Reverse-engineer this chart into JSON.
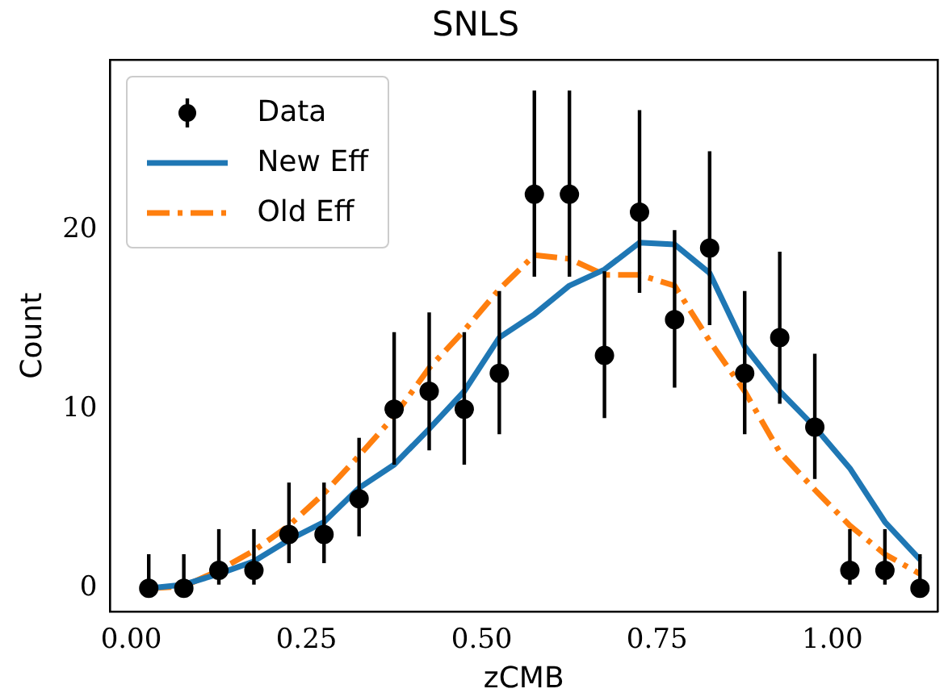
{
  "chart_data": {
    "type": "line",
    "title": "SNLS",
    "xlabel": "zCMB",
    "ylabel": "Count",
    "xlim": [
      -0.03,
      1.15
    ],
    "xticks": [
      {
        "value": 0,
        "label": "0.00"
      },
      {
        "value": 0.25,
        "label": "0.25"
      },
      {
        "value": 0.5,
        "label": "0.50"
      },
      {
        "value": 0.75,
        "label": "0.75"
      },
      {
        "value": 1,
        "label": "1.00"
      }
    ],
    "ylim": [
      -1.3,
      29.5
    ],
    "yticks": [
      0,
      10,
      20
    ],
    "x": [
      0.025,
      0.075,
      0.125,
      0.175,
      0.225,
      0.275,
      0.325,
      0.375,
      0.425,
      0.475,
      0.525,
      0.575,
      0.625,
      0.675,
      0.725,
      0.775,
      0.825,
      0.875,
      0.925,
      0.975,
      1.025,
      1.075,
      1.125
    ],
    "legend": "top left",
    "grid": false,
    "series": [
      {
        "name": "Data",
        "type": "scatter",
        "color": "#000000",
        "marker": "circle",
        "values": [
          0,
          0,
          1,
          1,
          3,
          3,
          5,
          10,
          11,
          10,
          12,
          22,
          22,
          13,
          21,
          15,
          19,
          12,
          14,
          9,
          1,
          1,
          0
        ],
        "errors": [
          [
            0,
            1.9
          ],
          [
            0,
            1.9
          ],
          [
            0.2,
            3.3
          ],
          [
            0.2,
            3.3
          ],
          [
            1.4,
            5.9
          ],
          [
            1.4,
            5.9
          ],
          [
            2.9,
            8.4
          ],
          [
            6.9,
            14.3
          ],
          [
            7.7,
            15.4
          ],
          [
            6.9,
            14.3
          ],
          [
            8.6,
            16.6
          ],
          [
            17.4,
            27.8
          ],
          [
            17.4,
            27.8
          ],
          [
            9.5,
            17.7
          ],
          [
            16.5,
            26.7
          ],
          [
            11.2,
            20
          ],
          [
            14.7,
            24.4
          ],
          [
            8.6,
            16.6
          ],
          [
            10.3,
            18.8
          ],
          [
            6.1,
            13.1
          ],
          [
            0.2,
            3.3
          ],
          [
            0.2,
            3.3
          ],
          [
            0,
            1.9
          ]
        ]
      },
      {
        "name": "New Eff",
        "color": "#1f77b4",
        "marker": "none",
        "line_style": "solid",
        "values": [
          0,
          0.2,
          0.8,
          1.5,
          2.7,
          3.7,
          5.6,
          6.9,
          8.9,
          11.0,
          14.0,
          15.3,
          16.9,
          17.8,
          19.3,
          19.2,
          17.6,
          13.5,
          11.0,
          9.0,
          6.7,
          3.7,
          1.6
        ]
      },
      {
        "name": "Old Eff",
        "color": "#ff7f0e",
        "marker": "none",
        "line_style": "dashed",
        "values": [
          0,
          0.1,
          1.0,
          2.1,
          3.5,
          5.3,
          7.4,
          9.6,
          12.3,
          14.4,
          16.7,
          18.6,
          18.4,
          17.5,
          17.5,
          16.9,
          13.8,
          11.0,
          7.6,
          5.5,
          3.5,
          1.9,
          0.8
        ]
      }
    ]
  }
}
